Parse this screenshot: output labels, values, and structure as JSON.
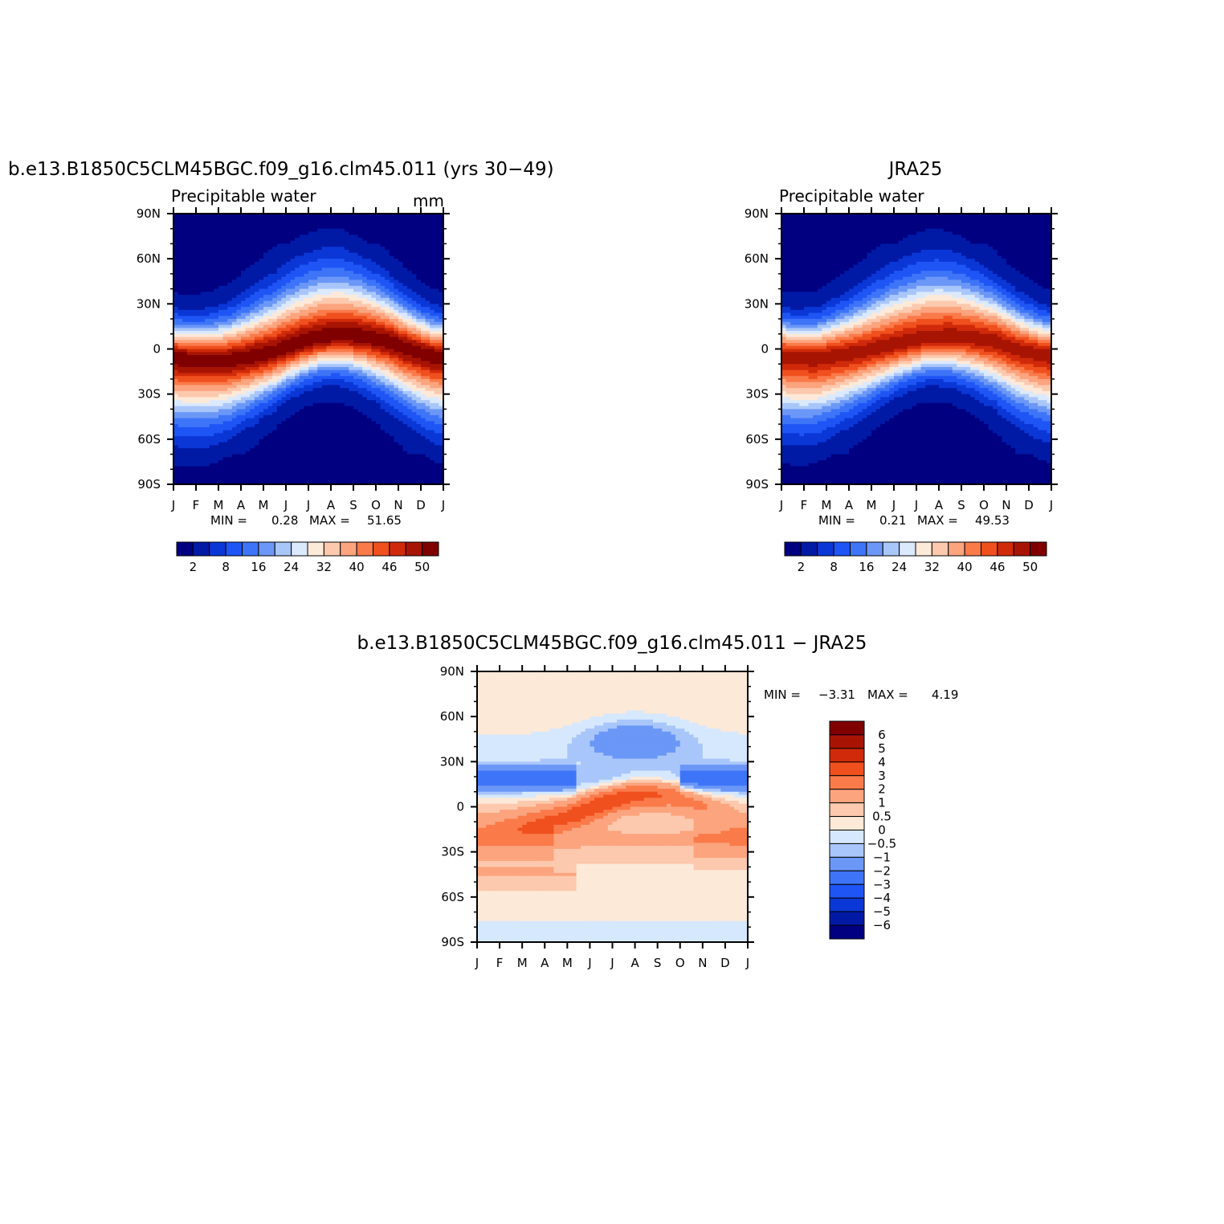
{
  "palettes": {
    "abs": [
      "#000080",
      "#001aa6",
      "#0a37d6",
      "#1f55f5",
      "#3e74f7",
      "#6b97f7",
      "#a9c6fb",
      "#dbe9fd",
      "#fde9d8",
      "#fcc9ae",
      "#fba47e",
      "#fa7a4a",
      "#f0501e",
      "#d02a0a",
      "#a81403",
      "#800000"
    ],
    "diff": [
      "#000080",
      "#001aa6",
      "#0a37d6",
      "#1f55f5",
      "#3e74f7",
      "#6b97f7",
      "#a9c6fb",
      "#d6e8fd",
      "#fde9d8",
      "#fcc9ae",
      "#fba47e",
      "#fa7a4a",
      "#f0501e",
      "#d02a0a",
      "#a81403",
      "#800000"
    ]
  },
  "months": [
    "J",
    "F",
    "M",
    "A",
    "M",
    "J",
    "J",
    "A",
    "S",
    "O",
    "N",
    "D",
    "J"
  ],
  "lats": [
    "90N",
    "60N",
    "30N",
    "0",
    "30S",
    "60S",
    "90S"
  ],
  "chart_data": [
    {
      "type": "heatmap",
      "title": "b.e13.B1850C5CLM45BGC.f09_g16.clm45.011 (yrs 30−49)",
      "subtitle": "Precipitable water",
      "units": "mm",
      "stats": {
        "min_label": "MIN =",
        "min": "0.28",
        "max_label": "MAX =",
        "max": "51.65"
      },
      "x_ticks": [
        "J",
        "F",
        "M",
        "A",
        "M",
        "J",
        "J",
        "A",
        "S",
        "O",
        "N",
        "D",
        "J"
      ],
      "y_ticks": [
        "90N",
        "60N",
        "30N",
        "0",
        "30S",
        "60S",
        "90S"
      ],
      "colorbar_levels": [
        "2",
        "8",
        "16",
        "24",
        "32",
        "40",
        "46",
        "50"
      ],
      "ylim": [
        -90,
        90
      ],
      "equator_peak_lat_by_month": [
        -6,
        -7,
        -7,
        -5,
        -2,
        3,
        7,
        9,
        8,
        5,
        0,
        -4
      ],
      "equator_peak_value": 51.65
    },
    {
      "type": "heatmap",
      "title": "JRA25",
      "subtitle": "Precipitable water",
      "units": "",
      "stats": {
        "min_label": "MIN =",
        "min": "0.21",
        "max_label": "MAX =",
        "max": "49.53"
      },
      "x_ticks": [
        "J",
        "F",
        "M",
        "A",
        "M",
        "J",
        "J",
        "A",
        "S",
        "O",
        "N",
        "D",
        "J"
      ],
      "y_ticks": [
        "90N",
        "60N",
        "30N",
        "0",
        "30S",
        "60S",
        "90S"
      ],
      "colorbar_levels": [
        "2",
        "8",
        "16",
        "24",
        "32",
        "40",
        "46",
        "50"
      ],
      "ylim": [
        -90,
        90
      ],
      "equator_peak_lat_by_month": [
        -5,
        -6,
        -4,
        -2,
        1,
        4,
        7,
        8,
        7,
        5,
        0,
        -3
      ],
      "equator_peak_value": 49.53
    },
    {
      "type": "heatmap",
      "title": "b.e13.B1850C5CLM45BGC.f09_g16.clm45.011 − JRA25",
      "stats": {
        "min_label": "MIN =",
        "min": "−3.31",
        "max_label": "MAX =",
        "max": "4.19"
      },
      "x_ticks": [
        "J",
        "F",
        "M",
        "A",
        "M",
        "J",
        "J",
        "A",
        "S",
        "O",
        "N",
        "D",
        "J"
      ],
      "y_ticks": [
        "90N",
        "60N",
        "30N",
        "0",
        "30S",
        "60S",
        "90S"
      ],
      "colorbar_levels": [
        "6",
        "5",
        "4",
        "3",
        "2",
        "1",
        "0.5",
        "0",
        "−0.5",
        "−1",
        "−2",
        "−3",
        "−4",
        "−5",
        "−6"
      ],
      "ylim": [
        -90,
        90
      ]
    }
  ]
}
